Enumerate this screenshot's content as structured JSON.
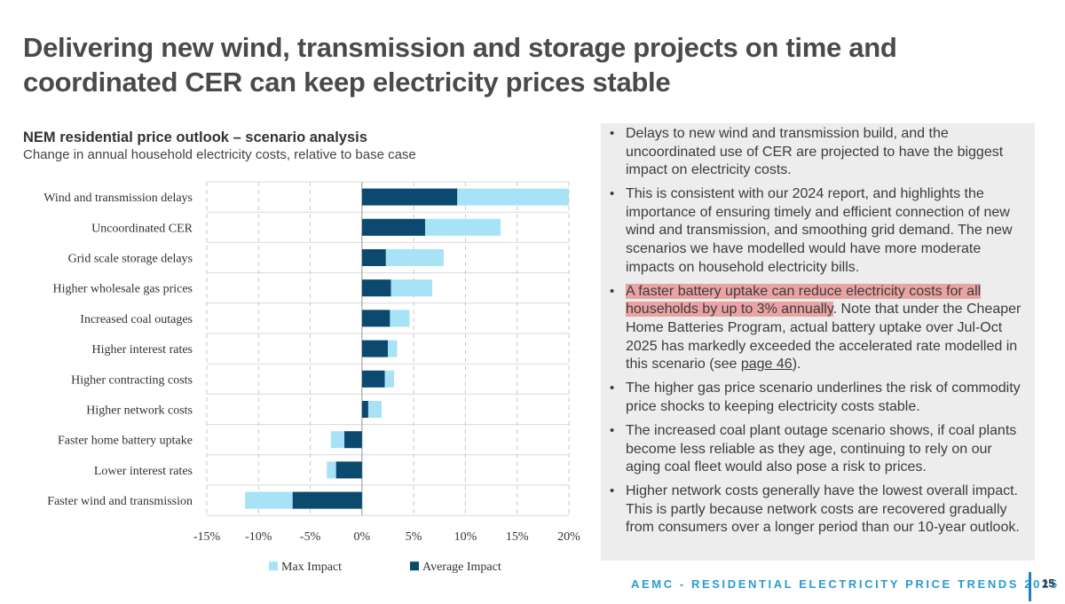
{
  "slide": {
    "title_line1": "Delivering new wind, transmission and storage projects on time and",
    "title_line2": "coordinated CER can keep electricity prices stable"
  },
  "chart_data": {
    "type": "bar",
    "orientation": "horizontal",
    "stacked": "overlay",
    "title": "NEM residential price outlook – scenario analysis",
    "subtitle": "Change in annual household electricity costs, relative to base case",
    "categories": [
      "Wind and transmission delays",
      "Uncoordinated CER",
      "Grid scale storage delays",
      "Higher wholesale gas prices",
      "Increased coal outages",
      "Higher interest rates",
      "Higher contracting costs",
      "Higher network costs",
      "Faster home battery uptake",
      "Lower interest rates",
      "Faster wind and transmission"
    ],
    "series": [
      {
        "name": "Max Impact",
        "color": "#a8e2f6",
        "values": [
          20,
          13.4,
          7.9,
          6.8,
          4.6,
          3.4,
          3.1,
          1.9,
          -3.0,
          -3.4,
          -11.3
        ]
      },
      {
        "name": "Average Impact",
        "color": "#0b4a6e",
        "values": [
          9.2,
          6.1,
          2.3,
          2.8,
          2.7,
          2.5,
          2.2,
          0.6,
          -1.7,
          -2.5,
          -6.7
        ]
      }
    ],
    "xlim": [
      -15,
      20
    ],
    "xticks": [
      -15,
      -10,
      -5,
      0,
      5,
      10,
      15,
      20
    ],
    "xtick_labels": [
      "-15%",
      "-10%",
      "-5%",
      "0%",
      "5%",
      "10%",
      "15%",
      "20%"
    ],
    "legend": [
      "Max Impact",
      "Average Impact"
    ],
    "legend_position": "bottom",
    "grid": "vertical dashed"
  },
  "panel": {
    "bullets": [
      {
        "text": "Delays to new wind and transmission build, and the uncoordinated use of CER are projected to have the biggest impact on electricity costs."
      },
      {
        "text": "This is consistent with our 2024 report, and highlights the importance of ensuring timely and efficient connection of new wind and transmission, and smoothing grid demand. The new scenarios we have modelled would have more moderate impacts on household electricity bills."
      },
      {
        "highlight": "A faster battery uptake can reduce electricity costs for all households by up to 3% annually",
        "rest_a": ". Note that under the Cheaper Home Batteries Program, actual battery uptake over Jul-Oct 2025 has markedly exceeded the accelerated rate modelled in this scenario (see ",
        "link": "page 46",
        "rest_b": ")."
      },
      {
        "text": "The higher gas price scenario underlines the risk of commodity price shocks to keeping electricity costs stable."
      },
      {
        "text": "The increased coal plant outage scenario shows, if coal plants become less reliable as they age, continuing to rely on our aging coal fleet would also pose a risk to prices."
      },
      {
        "text": "Higher network costs generally have the lowest overall impact. This is partly because network costs are recovered gradually from consumers over a longer period than our 10-year outlook."
      }
    ]
  },
  "footer": {
    "text": "AEMC - RESIDENTIAL ELECTRICITY PRICE TRENDS 2025",
    "page": "15"
  }
}
